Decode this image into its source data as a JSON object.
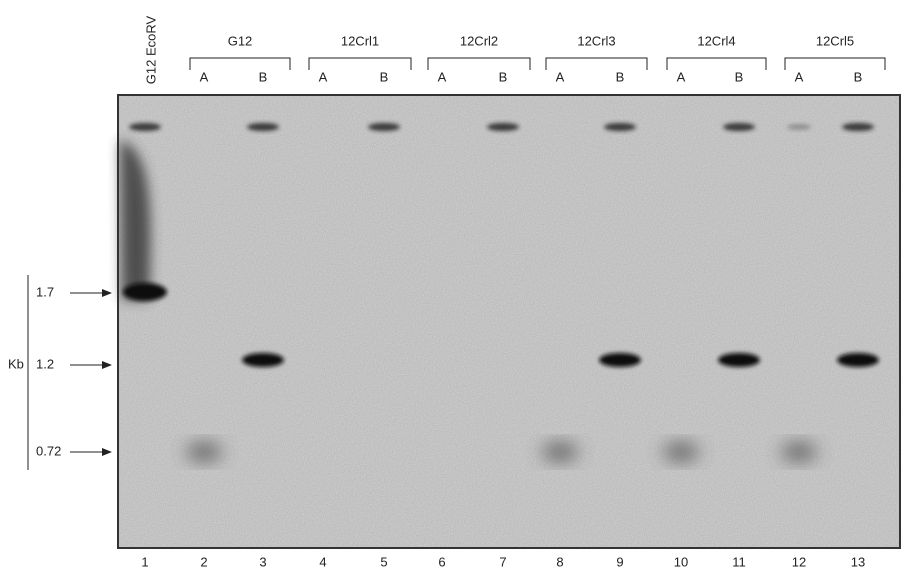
{
  "lane_header": "G12 EcoRV",
  "groups": [
    {
      "label": "G12",
      "lanes": [
        "A",
        "B"
      ]
    },
    {
      "label": "12Crl1",
      "lanes": [
        "A",
        "B"
      ]
    },
    {
      "label": "12Crl2",
      "lanes": [
        "A",
        "B"
      ]
    },
    {
      "label": "12Crl3",
      "lanes": [
        "A",
        "B"
      ]
    },
    {
      "label": "12Crl4",
      "lanes": [
        "A",
        "B"
      ]
    },
    {
      "label": "12Crl5",
      "lanes": [
        "A",
        "B"
      ]
    }
  ],
  "lane_numbers": [
    "1",
    "2",
    "3",
    "4",
    "5",
    "6",
    "7",
    "8",
    "9",
    "10",
    "11",
    "12",
    "13"
  ],
  "size_markers": [
    "1.7",
    "1.2",
    "0.72"
  ],
  "unit": "Kb"
}
